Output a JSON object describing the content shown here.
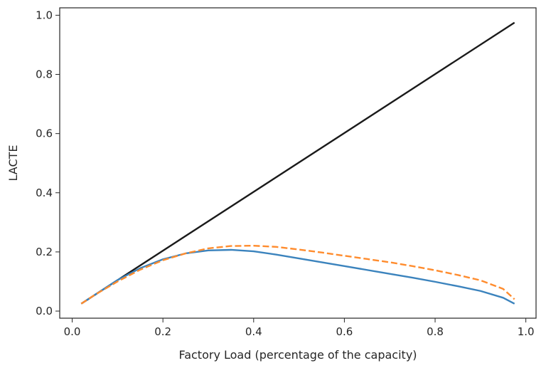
{
  "chart_data": {
    "type": "line",
    "title": "",
    "xlabel": "Factory Load (percentage of the capacity)",
    "ylabel": "LACTE",
    "xlim": [
      -0.0275,
      1.0225
    ],
    "ylim": [
      -0.024,
      1.025
    ],
    "xticks": [
      0.0,
      0.2,
      0.4,
      0.6,
      0.8,
      1.0
    ],
    "xtick_labels": [
      "0.0",
      "0.2",
      "0.4",
      "0.6",
      "0.8",
      "1.0"
    ],
    "yticks": [
      0.0,
      0.2,
      0.4,
      0.6,
      0.8,
      1.0
    ],
    "ytick_labels": [
      "0.0",
      "0.2",
      "0.4",
      "0.6",
      "0.8",
      "1.0"
    ],
    "grid": false,
    "legend": "none",
    "series": [
      {
        "name": "identity",
        "color": "#1a1a1a",
        "style": "solid",
        "x": [
          0.02,
          0.975
        ],
        "y": [
          0.025,
          0.975
        ]
      },
      {
        "name": "series-blue",
        "color": "#3b83bd",
        "style": "solid",
        "x": [
          0.02,
          0.05,
          0.1,
          0.15,
          0.2,
          0.25,
          0.3,
          0.35,
          0.4,
          0.45,
          0.5,
          0.55,
          0.6,
          0.65,
          0.7,
          0.75,
          0.8,
          0.85,
          0.9,
          0.95,
          0.975
        ],
        "y": [
          0.025,
          0.055,
          0.105,
          0.145,
          0.175,
          0.195,
          0.205,
          0.207,
          0.202,
          0.191,
          0.178,
          0.165,
          0.152,
          0.139,
          0.126,
          0.113,
          0.099,
          0.084,
          0.068,
          0.045,
          0.025
        ]
      },
      {
        "name": "series-orange",
        "color": "#ff8c2e",
        "style": "dashed",
        "x": [
          0.02,
          0.05,
          0.1,
          0.15,
          0.2,
          0.25,
          0.3,
          0.35,
          0.4,
          0.45,
          0.5,
          0.55,
          0.6,
          0.65,
          0.7,
          0.75,
          0.8,
          0.85,
          0.9,
          0.95,
          0.975
        ],
        "y": [
          0.025,
          0.055,
          0.1,
          0.14,
          0.172,
          0.195,
          0.212,
          0.22,
          0.221,
          0.217,
          0.208,
          0.198,
          0.187,
          0.176,
          0.165,
          0.152,
          0.138,
          0.122,
          0.104,
          0.075,
          0.04
        ]
      }
    ]
  }
}
